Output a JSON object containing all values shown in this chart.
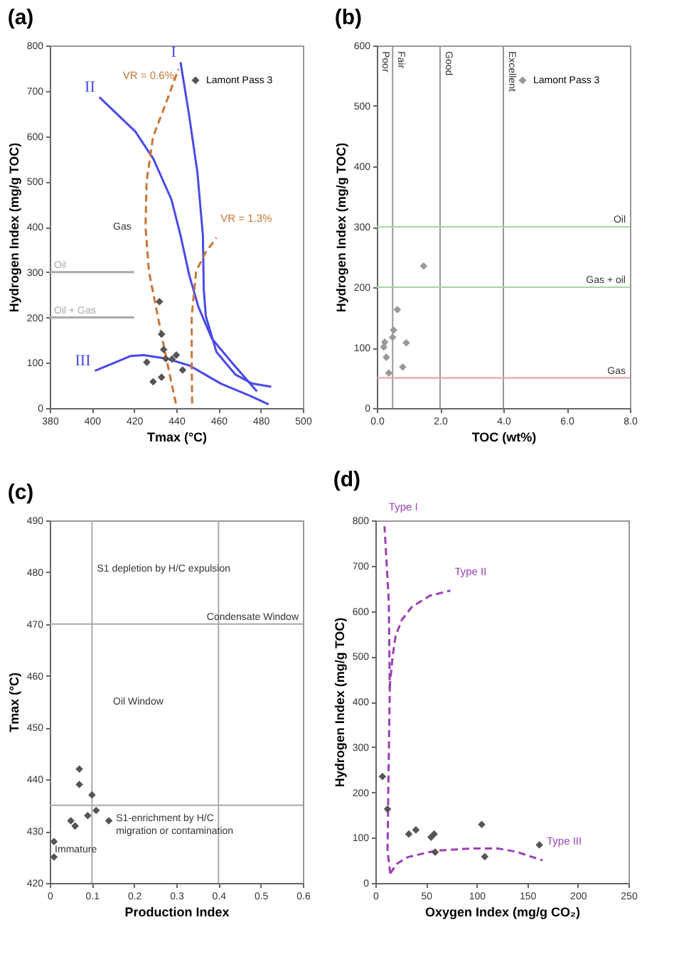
{
  "chart_data": [
    {
      "type": "scatter",
      "title": "(a)",
      "xlabel": "Tmax (°C)",
      "ylabel": "Hydrogen Index (mg/g TOC)",
      "xlim": [
        380,
        500
      ],
      "xticks": [
        380,
        400,
        420,
        440,
        460,
        480,
        500
      ],
      "ylim": [
        0,
        800
      ],
      "yticks": [
        0,
        100,
        200,
        300,
        400,
        500,
        600,
        700,
        800
      ],
      "legend": "top right",
      "marker": "diamond",
      "series": [
        {
          "type": "line",
          "name": "I",
          "color": "#4a4ae6",
          "line_style": "solid",
          "marker": "none",
          "x": [
            485,
            476,
            468,
            459,
            454,
            453,
            452.6,
            450,
            446,
            442
          ],
          "values": [
            47,
            54,
            74,
            124,
            203,
            262,
            381,
            520,
            648,
            763
          ]
        },
        {
          "type": "line",
          "name": "II",
          "color": "#4a4ae6",
          "line_style": "solid",
          "marker": "none",
          "x": [
            478.2,
            467.5,
            456.9,
            450.5,
            446.2,
            442,
            437.7,
            429.1,
            420.6,
            403.5
          ],
          "values": [
            37,
            94,
            153,
            223,
            292,
            381,
            460,
            550,
            610,
            686
          ]
        },
        {
          "type": "line",
          "name": "III",
          "color": "#4a4ae6",
          "line_style": "solid",
          "marker": "none",
          "x": [
            483.8,
            476,
            461.1,
            446.2,
            435.5,
            424.4,
            418.4,
            401.4
          ],
          "values": [
            8,
            25,
            54,
            94,
            109,
            117,
            115,
            82
          ]
        },
        {
          "type": "line",
          "name": "VR = 0.6%",
          "color": "#c8763a",
          "line_style": "dashed",
          "marker": "none",
          "x": [
            439.8,
            435.5,
            431.2,
            427,
            425.4,
            425.9,
            429,
            435.5,
            441
          ],
          "values": [
            10,
            104,
            203,
            302,
            401,
            500,
            599,
            678,
            748
          ]
        },
        {
          "type": "line",
          "name": "VR = 1.3%",
          "color": "#c8763a",
          "line_style": "dashed",
          "marker": "none",
          "x": [
            447.5,
            447.3,
            447.3,
            449.4,
            453.7,
            459
          ],
          "values": [
            10,
            104,
            203,
            302,
            342,
            376
          ]
        },
        {
          "type": "line",
          "name": "Oil",
          "color": "#aaaaaa",
          "line_style": "solid",
          "marker": "none",
          "x": [
            420,
            380
          ],
          "values": [
            300,
            300
          ]
        },
        {
          "type": "line",
          "name": "Oil + Gas",
          "color": "#aaaaaa",
          "line_style": "solid",
          "marker": "none",
          "x": [
            420,
            380
          ],
          "values": [
            200,
            200
          ]
        },
        {
          "type": "scatter",
          "name": "Lamont Pass 3",
          "color": "#555555",
          "x": [
            432,
            433,
            434,
            435,
            438,
            440,
            426,
            443,
            433,
            429
          ],
          "values": [
            235,
            163,
            129,
            109,
            108,
            117,
            101,
            84,
            68,
            58
          ]
        }
      ],
      "annotations": [
        "Gas"
      ]
    },
    {
      "type": "scatter",
      "title": "(b)",
      "xlabel": "TOC (wt%)",
      "ylabel": "Hydrogen Index (mg/g TOC)",
      "xlim": [
        0,
        8
      ],
      "xticks": [
        {
          "value": 0,
          "label": "0.0"
        },
        {
          "value": 2,
          "label": "2.0"
        },
        {
          "value": 4,
          "label": "4.0"
        },
        {
          "value": 6,
          "label": "6.0"
        },
        {
          "value": 8,
          "label": "8.0"
        }
      ],
      "ylim": [
        0,
        600
      ],
      "yticks": [
        0,
        100,
        200,
        300,
        400,
        500,
        600
      ],
      "legend": "top right",
      "marker": "diamond",
      "series": [
        {
          "type": "scatter",
          "name": "Lamont Pass 3",
          "color": "#999999",
          "x": [
            1.48,
            0.65,
            0.53,
            0.5,
            0.25,
            0.22,
            0.93,
            0.3,
            0.82,
            0.38
          ],
          "values": [
            235,
            163,
            129,
            117,
            109,
            101,
            108,
            84,
            68,
            58
          ]
        }
      ],
      "ref_lines": [
        {
          "axis": "x",
          "value": 0.5,
          "label": "Fair",
          "color": "#999999"
        },
        {
          "axis": "x",
          "value": 2,
          "label": "Good",
          "color": "#999999"
        },
        {
          "axis": "x",
          "value": 4,
          "label": "Excellent",
          "color": "#999999"
        },
        {
          "axis": "y",
          "value": 300,
          "label": "Oil",
          "color": "#a6d5a6"
        },
        {
          "axis": "y",
          "value": 200,
          "label": "Gas + oil",
          "color": "#a6d5a6"
        },
        {
          "axis": "y",
          "value": 50,
          "label": "Gas",
          "color": "#e6a0a0"
        }
      ],
      "annotations": [
        "Poor"
      ]
    },
    {
      "type": "scatter",
      "title": "(c)",
      "xlabel": "Production Index",
      "ylabel": "Tmax (°C)",
      "xlim": [
        0,
        0.6
      ],
      "xticks": [
        0,
        0.1,
        0.2,
        0.3,
        0.4,
        0.5,
        0.6
      ],
      "ylim": [
        420,
        490
      ],
      "yticks": [
        420,
        430,
        440,
        450,
        460,
        470,
        480,
        490
      ],
      "marker": "diamond",
      "series": [
        {
          "type": "scatter",
          "color": "#555555",
          "x": [
            0.07,
            0.07,
            0.1,
            0.11,
            0.09,
            0.05,
            0.06,
            0.14,
            0.01,
            0.01
          ],
          "values": [
            442,
            439,
            437,
            434,
            433,
            432,
            431,
            432,
            428,
            425
          ]
        }
      ],
      "ref_lines": [
        {
          "axis": "x",
          "value": 0.1,
          "color": "#aaaaaa"
        },
        {
          "axis": "x",
          "value": 0.4,
          "color": "#aaaaaa"
        },
        {
          "axis": "y",
          "value": 470,
          "label": "Condensate Window",
          "color": "#aaaaaa"
        },
        {
          "axis": "y",
          "value": 435,
          "color": "#aaaaaa"
        }
      ],
      "annotations": [
        {
          "text": "S1 depletion by H/C expulsion",
          "x": 0.112,
          "y": 480.6
        },
        "Oil Window",
        {
          "text": "S1-enrichment by H/C\nmigration or contamination",
          "x": 0.157,
          "y": 432.5
        },
        {
          "text": "Immature",
          "x": 0.012,
          "y": 426.4
        }
      ]
    },
    {
      "type": "scatter",
      "title": "(d)",
      "xlabel": "Oxygen Index (mg/g CO₂)",
      "ylabel": "Hydrogen Index (mg/g TOC)",
      "xlim": [
        0,
        250
      ],
      "xticks": [
        0,
        50,
        100,
        150,
        200,
        250
      ],
      "ylim": [
        0,
        800
      ],
      "yticks": [
        0,
        100,
        200,
        300,
        400,
        500,
        600,
        700,
        800
      ],
      "marker": "diamond",
      "series": [
        {
          "type": "line",
          "name": "Type I",
          "color": "#9b3fb5",
          "line_style": "dashed",
          "marker": "none",
          "x": [
            14.7,
            12,
            12.9,
            14.2,
            13.3,
            9
          ],
          "values": [
            21,
            71,
            228,
            423,
            619,
            787
          ]
        },
        {
          "type": "line",
          "name": "Type II",
          "color": "#9b3fb5",
          "line_style": "dashed",
          "marker": "none",
          "x": [
            14,
            17,
            20,
            26,
            36,
            54,
            74
          ],
          "values": [
            430,
            500,
            545,
            580,
            609,
            634,
            645
          ]
        },
        {
          "type": "line",
          "name": "Type III",
          "color": "#9b3fb5",
          "line_style": "dashed",
          "marker": "none",
          "x": [
            14.7,
            21,
            32,
            59,
            94,
            121,
            139,
            165
          ],
          "values": [
            21,
            42,
            57,
            71,
            76,
            76,
            69,
            50
          ]
        },
        {
          "type": "scatter",
          "color": "#555555",
          "x": [
            7,
            12,
            33,
            40,
            55,
            58,
            59,
            105,
            108,
            162
          ],
          "values": [
            235,
            163,
            108,
            117,
            101,
            108,
            68,
            129,
            58,
            84
          ]
        }
      ]
    }
  ]
}
